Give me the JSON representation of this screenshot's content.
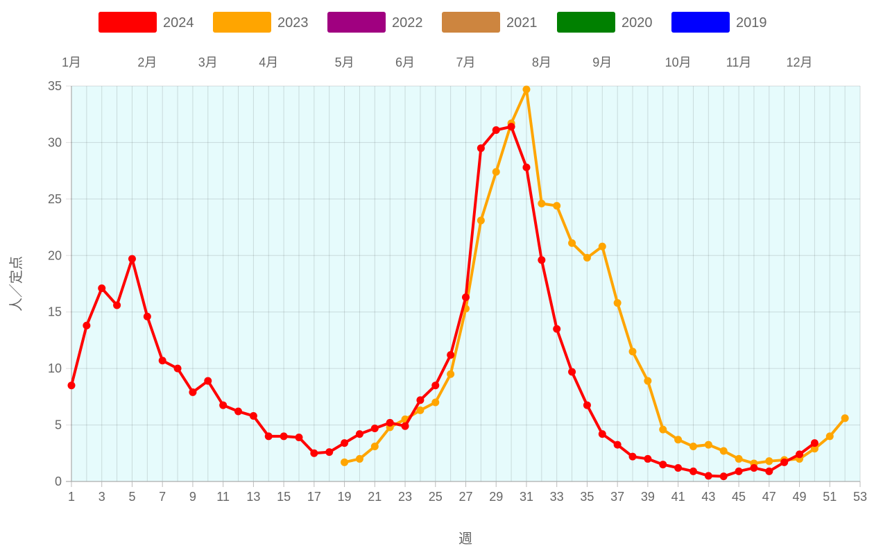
{
  "chart_data": {
    "type": "line",
    "xlabel": "週",
    "ylabel": "人／定点",
    "xlim": [
      1,
      53
    ],
    "ylim": [
      0,
      35
    ],
    "x_ticks": [
      1,
      3,
      5,
      7,
      9,
      11,
      13,
      15,
      17,
      19,
      21,
      23,
      25,
      27,
      29,
      31,
      33,
      35,
      37,
      39,
      41,
      43,
      45,
      47,
      49,
      51,
      53
    ],
    "y_ticks": [
      0,
      5,
      10,
      15,
      20,
      25,
      30,
      35
    ],
    "grid": true,
    "plot_background": "#e6fbfc",
    "legend_position": "top",
    "month_labels": [
      {
        "week": 1,
        "label": "1月"
      },
      {
        "week": 6,
        "label": "2月"
      },
      {
        "week": 10,
        "label": "3月"
      },
      {
        "week": 14,
        "label": "4月"
      },
      {
        "week": 19,
        "label": "5月"
      },
      {
        "week": 23,
        "label": "6月"
      },
      {
        "week": 27,
        "label": "7月"
      },
      {
        "week": 32,
        "label": "8月"
      },
      {
        "week": 36,
        "label": "9月"
      },
      {
        "week": 41,
        "label": "10月"
      },
      {
        "week": 45,
        "label": "11月"
      },
      {
        "week": 49,
        "label": "12月"
      }
    ],
    "series": [
      {
        "name": "2024",
        "color": "#ff0000",
        "start_week": 1,
        "values": [
          8.5,
          13.8,
          17.1,
          15.6,
          19.7,
          14.6,
          10.7,
          10.0,
          7.9,
          8.9,
          6.75,
          6.2,
          5.8,
          4.0,
          4.0,
          3.9,
          2.5,
          2.6,
          3.4,
          4.2,
          4.7,
          5.2,
          4.9,
          7.2,
          8.5,
          11.2,
          16.3,
          29.5,
          31.1,
          31.4,
          27.8,
          19.6,
          13.5,
          9.7,
          6.75,
          4.2,
          3.25,
          2.2,
          2.0,
          1.5,
          1.2,
          0.9,
          0.5,
          0.45,
          0.9,
          1.2,
          0.9,
          1.7,
          2.4,
          3.4
        ]
      },
      {
        "name": "2023",
        "color": "#ffa500",
        "start_week": 19,
        "values": [
          1.7,
          2.0,
          3.1,
          4.8,
          5.5,
          6.3,
          7.0,
          9.5,
          15.3,
          23.1,
          27.4,
          31.7,
          34.7,
          24.6,
          24.4,
          21.1,
          19.8,
          20.8,
          15.8,
          11.5,
          8.9,
          4.6,
          3.7,
          3.1,
          3.25,
          2.7,
          2.0,
          1.6,
          1.8,
          1.9,
          2.0,
          2.9,
          4.0,
          5.6
        ]
      },
      {
        "name": "2022",
        "color": "#a00080",
        "start_week": 1,
        "values": []
      },
      {
        "name": "2021",
        "color": "#cd853f",
        "start_week": 1,
        "values": []
      },
      {
        "name": "2020",
        "color": "#008000",
        "start_week": 1,
        "values": []
      },
      {
        "name": "2019",
        "color": "#0000ff",
        "start_week": 1,
        "values": []
      }
    ]
  }
}
